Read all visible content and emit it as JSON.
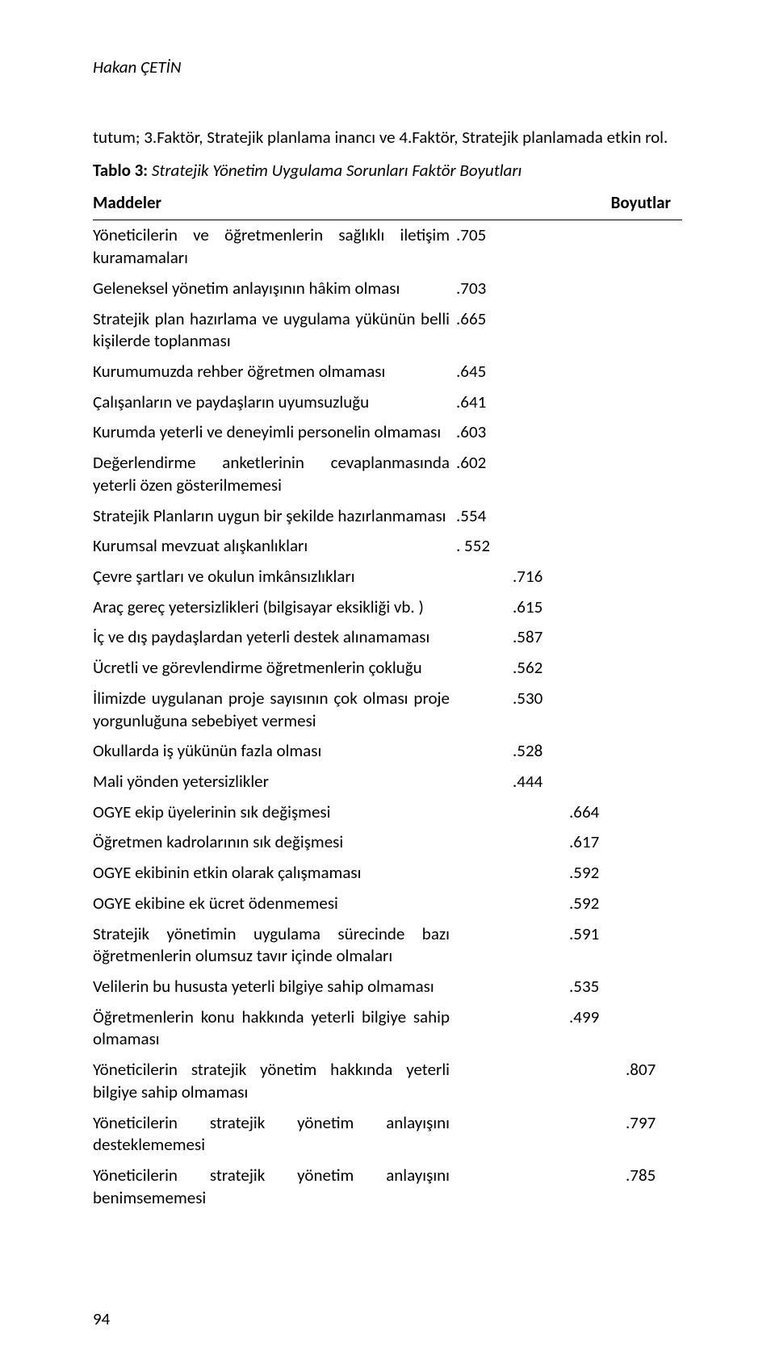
{
  "author": "Hakan ÇETİN",
  "intro": "tutum; 3.Faktör, Stratejik planlama inancı ve 4.Faktör, Stratejik planlamada etkin rol.",
  "caption_prefix": "Tablo 3:",
  "caption_text": "Stratejik Yönetim Uygulama Sorunları Faktör Boyutları",
  "col1": "Maddeler",
  "col2": "Boyutlar",
  "page_number": "94",
  "rows": [
    {
      "label": "Yöneticilerin ve öğretmenlerin sağlıklı iletişim kuramamaları",
      "value": ".705",
      "col": 0
    },
    {
      "label": "Geleneksel yönetim anlayışının hâkim olması",
      "value": ".703",
      "col": 0
    },
    {
      "label": "Stratejik plan hazırlama ve uygulama yükünün belli kişilerde toplanması",
      "value": ".665",
      "col": 0
    },
    {
      "label": "Kurumumuzda rehber öğretmen olmaması",
      "value": ".645",
      "col": 0
    },
    {
      "label": "Çalışanların ve paydaşların uyumsuzluğu",
      "value": ".641",
      "col": 0
    },
    {
      "label": "Kurumda yeterli ve deneyimli personelin olmaması",
      "value": ".603",
      "col": 0
    },
    {
      "label": "Değerlendirme anketlerinin cevaplanmasında yeterli özen gösterilmemesi",
      "value": ".602",
      "col": 0
    },
    {
      "label": "Stratejik Planların uygun bir şekilde hazırlanmaması",
      "value": ".554",
      "col": 0
    },
    {
      "label": "Kurumsal mevzuat alışkanlıkları",
      "value": ". 552",
      "col": 0
    },
    {
      "label": "Çevre şartları ve okulun imkânsızlıkları",
      "value": ".716",
      "col": 1
    },
    {
      "label": "Araç gereç yetersizlikleri (bilgisayar eksikliği vb. )",
      "value": ".615",
      "col": 1
    },
    {
      "label": "İç ve dış paydaşlardan yeterli destek alınamaması",
      "value": ".587",
      "col": 1
    },
    {
      "label": "Ücretli ve görevlendirme öğretmenlerin çokluğu",
      "value": ".562",
      "col": 1
    },
    {
      "label": "İlimizde uygulanan proje sayısının çok olması proje yorgunluğuna sebebiyet vermesi",
      "value": ".530",
      "col": 1
    },
    {
      "label": "Okullarda iş yükünün fazla olması",
      "value": ".528",
      "col": 1
    },
    {
      "label": "Mali yönden yetersizlikler",
      "value": ".444",
      "col": 1
    },
    {
      "label": "OGYE ekip üyelerinin sık değişmesi",
      "value": ".664",
      "col": 2
    },
    {
      "label": "Öğretmen kadrolarının sık değişmesi",
      "value": ".617",
      "col": 2
    },
    {
      "label": "OGYE ekibinin etkin olarak çalışmaması",
      "value": ".592",
      "col": 2
    },
    {
      "label": "OGYE ekibine ek ücret ödenmemesi",
      "value": ".592",
      "col": 2
    },
    {
      "label": "Stratejik yönetimin uygulama sürecinde bazı öğretmenlerin olumsuz tavır içinde olmaları",
      "value": ".591",
      "col": 2
    },
    {
      "label": "Velilerin bu hususta yeterli bilgiye sahip olmaması",
      "value": ".535",
      "col": 2
    },
    {
      "label": "Öğretmenlerin konu hakkında yeterli bilgiye sahip olmaması",
      "value": ".499",
      "col": 2
    },
    {
      "label": "Yöneticilerin stratejik yönetim hakkında yeterli bilgiye sahip olmaması",
      "value": ".807",
      "col": 3
    },
    {
      "label": "Yöneticilerin stratejik yönetim anlayışını desteklememesi",
      "value": ".797",
      "col": 3
    },
    {
      "label": "Yöneticilerin stratejik yönetim anlayışını benimsememesi",
      "value": ".785",
      "col": 3
    }
  ]
}
